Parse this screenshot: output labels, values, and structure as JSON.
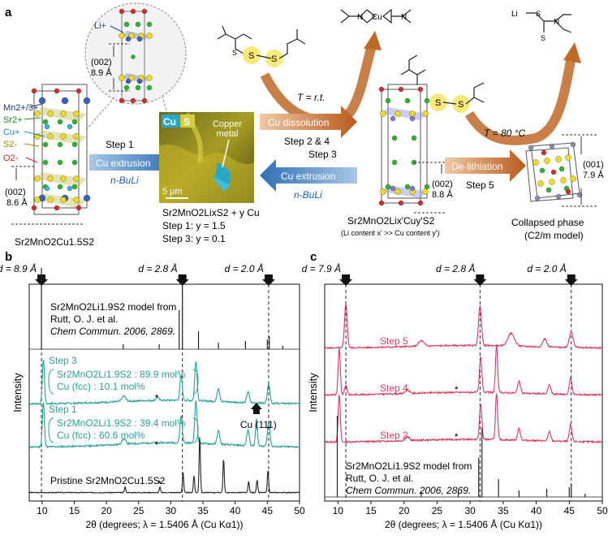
{
  "panel_a": {
    "label": "a",
    "ions": {
      "mn": "Mn2+/3+",
      "sr": "Sr2+",
      "cu": "Cu+",
      "s": "S2-",
      "o": "O2-",
      "li": "Li+"
    },
    "left_compound": "Sr2MnO2Cu1.5S2",
    "left_spacing": "(002)\n8.6 Å",
    "inset_spacing": "(002)\n8.9 Å",
    "step1": "Step 1",
    "cu_extrusion": "Cu extrusion",
    "nbuli": "n-BuLi",
    "sem_cu": "Cu",
    "sem_s": "S",
    "sem_copper_metal": "Copper\nmetal",
    "sem_scale": "5 μm",
    "mid_formula": "Sr2MnO2LixS2 + y Cu",
    "mid_step1": "Step 1: y = 1.5",
    "mid_step3": "Step 3: y = 0.1",
    "t_rt": "T = r.t.",
    "cu_dissolution": "Cu dissolution",
    "step24": "Step 2 & 4",
    "step3": "Step 3",
    "right_spacing": "(002)\n8.8 Å",
    "right_formula": "Sr2MnO2Lix'Cuy'S2",
    "right_note": "(Li content x' >> Cu content y')",
    "t_80": "T = 80 °C",
    "delithiation": "De-lithiation",
    "step5": "Step 5",
    "collapsed_spacing": "(001)\n7.9 Å",
    "collapsed": "Collapsed phase",
    "collapsed_model": "(C2/m model)",
    "li_label": "Li",
    "cu_label": "Cu"
  },
  "chart_data": [
    {
      "type": "line",
      "panel": "b",
      "xlabel": "2θ (degrees; λ = 1.5406 Å (Cu Kα1))",
      "ylabel": "Intensity",
      "xlim": [
        8,
        50
      ],
      "xticks": [
        10,
        15,
        20,
        25,
        30,
        35,
        40,
        45,
        50
      ],
      "d_markers": [
        {
          "label": "d = 8.9 Å",
          "x": 9.9
        },
        {
          "label": "d = 2.8 Å",
          "x": 31.8
        },
        {
          "label": "d = 2.0 Å",
          "x": 45.2
        }
      ],
      "series": [
        {
          "name": "Sr2MnO2Li1.9S2 model from",
          "color": "#222222"
        },
        {
          "name": "Step 3",
          "color": "#2aa198"
        },
        {
          "name": "Step 1",
          "color": "#2aa198"
        },
        {
          "name": "Pristine Sr2MnO2Cu1.5S2",
          "color": "#222222"
        }
      ],
      "model_ref": {
        "line1": "Sr2MnO2Li1.9S2 model from",
        "line2": "Rutt, O. J. et al.",
        "line3": "Chem Commun. 2006, 2869."
      },
      "annotations": {
        "step3_line1": "Sr2MnO2Li1.9S2 : 89.9 mol%",
        "step3_line2": "Cu (fcc)         : 10.1 mol%",
        "step1_line1": "Sr2MnO2Li1.9S2 : 39.4 mol%",
        "step1_line2": "Cu (fcc)         : 60.6 mol%",
        "cu111": "Cu (111)",
        "star": "*"
      }
    },
    {
      "type": "line",
      "panel": "c",
      "xlabel": "2θ (degrees; λ = 1.5406 Å (Cu Kα1))",
      "ylabel": "Intensity",
      "xlim": [
        8,
        50
      ],
      "xticks": [
        10,
        15,
        20,
        25,
        30,
        35,
        40,
        45,
        50
      ],
      "d_markers": [
        {
          "label": "d = 7.9 Å",
          "x": 11.2
        },
        {
          "label": "d = 2.8 Å",
          "x": 31.5
        },
        {
          "label": "d = 2.0 Å",
          "x": 45.3
        }
      ],
      "series": [
        {
          "name": "Step 5",
          "color": "#d63a5e"
        },
        {
          "name": "Step 4",
          "color": "#d63a5e"
        },
        {
          "name": "Step 2",
          "color": "#d63a5e"
        },
        {
          "name": "Sr2MnO2Li1.9S2 model from",
          "color": "#222222"
        }
      ],
      "model_ref": {
        "line1": "Sr2MnO2Li1.9S2 model from",
        "line2": "Rutt, O. J. et al.",
        "line3": "Chem Commun. 2006, 2869."
      },
      "annotations": {
        "star": "*"
      }
    }
  ],
  "labels": {
    "b": "b",
    "c": "c"
  }
}
